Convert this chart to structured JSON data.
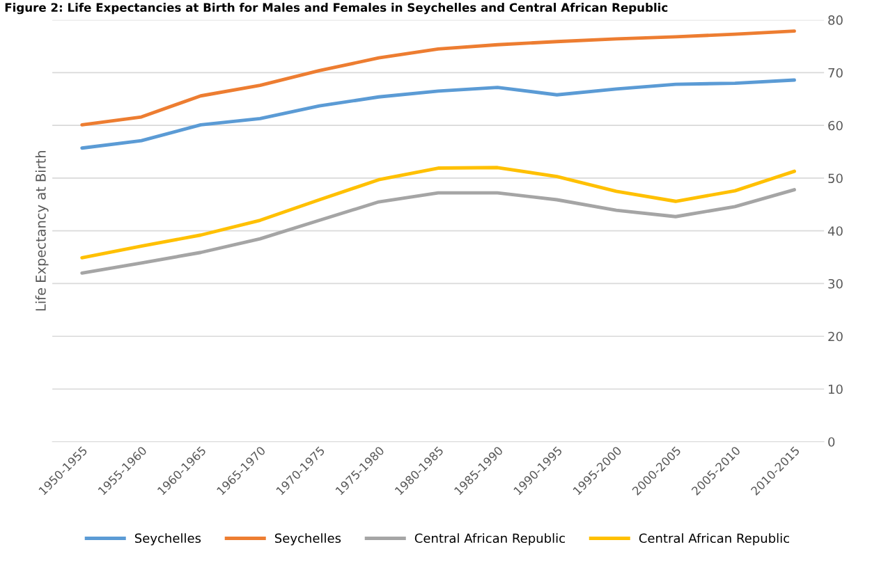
{
  "chart_data": {
    "type": "line",
    "title": "Figure 2: Life Expectancies at Birth for Males and Females in Seychelles and Central African Republic",
    "ylabel": "Life Expectancy at Birth",
    "categories": [
      "1950-1955",
      "1955-1960",
      "1960-1965",
      "1965-1970",
      "1970-1975",
      "1975-1980",
      "1980-1985",
      "1985-1990",
      "1990-1995",
      "1995-2000",
      "2000-2005",
      "2005-2010",
      "2010-2015"
    ],
    "series": [
      {
        "name": "Seychelles",
        "color": "#5b9bd5",
        "values": [
          55.7,
          57.1,
          60.1,
          61.3,
          63.7,
          65.4,
          66.5,
          67.2,
          65.8,
          66.9,
          67.8,
          68.0,
          68.6
        ]
      },
      {
        "name": "Seychelles",
        "color": "#ed7d31",
        "values": [
          60.1,
          61.6,
          65.6,
          67.6,
          70.4,
          72.8,
          74.5,
          75.3,
          75.9,
          76.4,
          76.8,
          77.3,
          77.9
        ]
      },
      {
        "name": "Central African Republic",
        "color": "#a5a5a5",
        "values": [
          32.0,
          33.9,
          35.9,
          38.5,
          42.0,
          45.5,
          47.2,
          47.2,
          45.9,
          43.9,
          42.7,
          44.6,
          47.8
        ]
      },
      {
        "name": "Central African Republic",
        "color": "#ffc000",
        "values": [
          34.9,
          37.1,
          39.2,
          42.0,
          45.9,
          49.7,
          51.9,
          52.0,
          50.3,
          47.5,
          45.6,
          47.6,
          51.3
        ]
      }
    ],
    "ylim": [
      0,
      80
    ],
    "yticks": [
      0,
      10,
      20,
      30,
      40,
      50,
      60,
      70,
      80
    ],
    "grid": "y",
    "legend": "bottom",
    "marker": "none",
    "line_style": "solid"
  }
}
